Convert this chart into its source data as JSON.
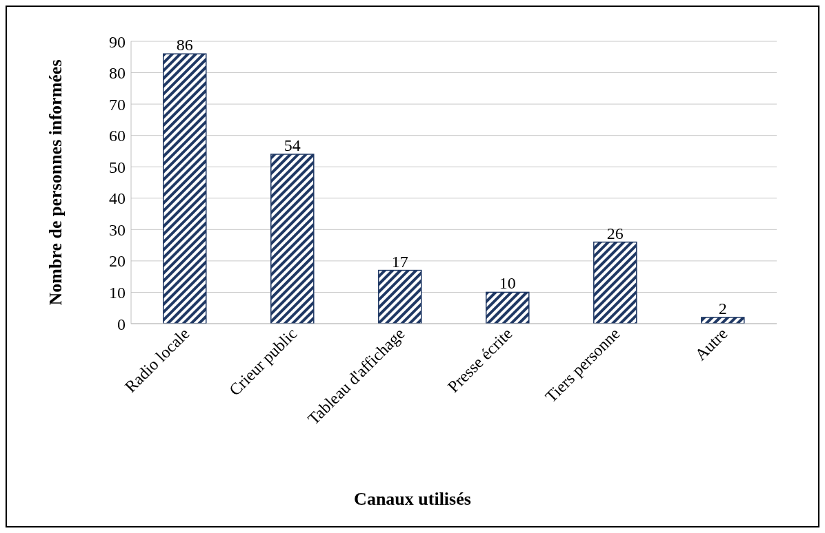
{
  "chart_data": {
    "type": "bar",
    "xlabel": "Canaux utilisés",
    "ylabel": "Nombre de personnes informées",
    "categories": [
      "Radio locale",
      "Crieur public",
      "Tableau d'affichage",
      "Presse écrite",
      "Tiers personne",
      "Autre"
    ],
    "values": [
      86,
      54,
      17,
      10,
      26,
      2
    ],
    "color": "#1f3864",
    "ylim": [
      0,
      90
    ],
    "yticks": [
      0,
      10,
      20,
      30,
      40,
      50,
      60,
      70,
      80,
      90
    ],
    "grid": "y",
    "data_labels": true
  }
}
